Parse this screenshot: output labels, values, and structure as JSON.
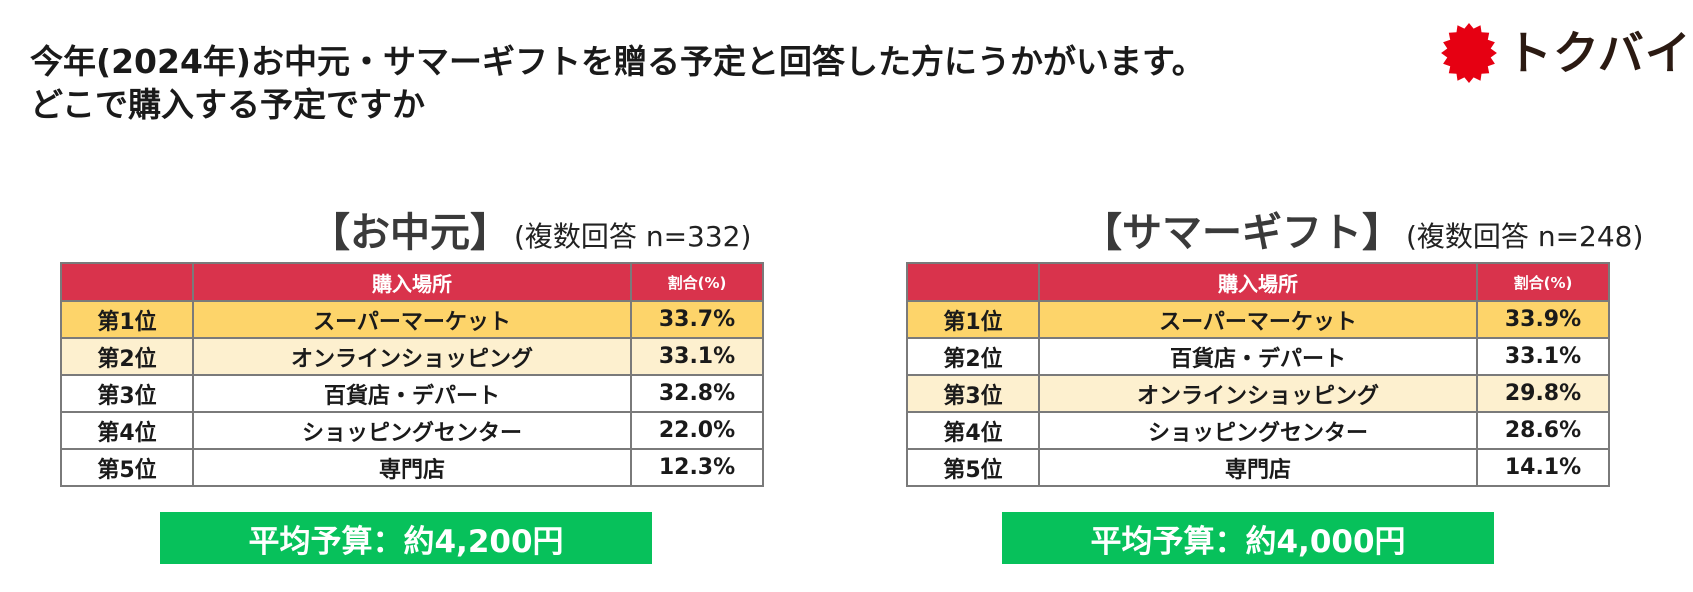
{
  "title": {
    "line1": "今年(2024年)お中元・サマーギフトを贈る予定と回答した方にうかがいます。",
    "line2": "どこで購入する予定ですか"
  },
  "logo": {
    "text": "トクバイ",
    "icon": "red-burst-icon",
    "color": "#e60012"
  },
  "table_headers": {
    "rank": "",
    "place": "購入場所",
    "ratio": "割合(%)"
  },
  "panels": {
    "ochugen": {
      "heading": "【お中元】",
      "sample": "(複数回答 n=332)",
      "rows": [
        {
          "rank": "第1位",
          "place": "スーパーマーケット",
          "ratio": "33.7%"
        },
        {
          "rank": "第2位",
          "place": "オンラインショッピング",
          "ratio": "33.1%"
        },
        {
          "rank": "第3位",
          "place": "百貨店・デパート",
          "ratio": "32.8%"
        },
        {
          "rank": "第4位",
          "place": "ショッピングセンター",
          "ratio": "22.0%"
        },
        {
          "rank": "第5位",
          "place": "専門店",
          "ratio": "12.3%"
        }
      ],
      "budget": "平均予算：約4,200円"
    },
    "summer": {
      "heading": "【サマーギフト】",
      "sample": "(複数回答 n=248)",
      "rows": [
        {
          "rank": "第1位",
          "place": "スーパーマーケット",
          "ratio": "33.9%"
        },
        {
          "rank": "第2位",
          "place": "百貨店・デパート",
          "ratio": "33.1%"
        },
        {
          "rank": "第3位",
          "place": "オンラインショッピング",
          "ratio": "29.8%"
        },
        {
          "rank": "第4位",
          "place": "ショッピングセンター",
          "ratio": "28.6%"
        },
        {
          "rank": "第5位",
          "place": "専門店",
          "ratio": "14.1%"
        }
      ],
      "budget": "平均予算：約4,000円"
    }
  },
  "colors": {
    "header_red": "#d9334c",
    "first_row": "#fdd46a",
    "highlight_row": "#fdf0cf",
    "budget_green": "#07c15b"
  }
}
